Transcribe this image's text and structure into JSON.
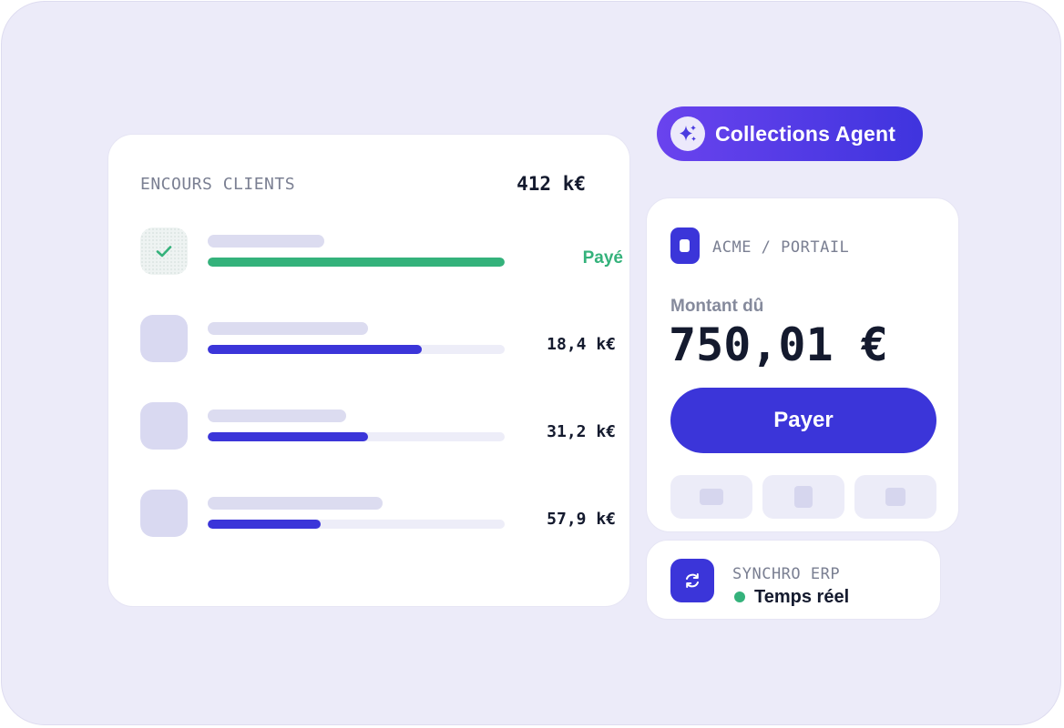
{
  "receivables": {
    "title": "ENCOURS CLIENTS",
    "total": "412 k€",
    "rows": [
      {
        "status": "Payé",
        "progress": 1.0,
        "line_fraction": 0.4,
        "state": "paid"
      },
      {
        "amount": "18,4 k€",
        "progress": 0.72,
        "line_fraction": 0.54
      },
      {
        "amount": "31,2 k€",
        "progress": 0.54,
        "line_fraction": 0.47
      },
      {
        "amount": "57,9 k€",
        "progress": 0.38,
        "line_fraction": 0.59
      }
    ]
  },
  "agent": {
    "label": "Collections Agent",
    "icon": "sparkle-icon"
  },
  "payment": {
    "merchant": "ACME / PORTAIL",
    "amount_label": "Montant dû",
    "amount": "750,01 €",
    "pay_label": "Payer",
    "methods": [
      "card-icon",
      "phone-icon",
      "bank-icon"
    ]
  },
  "sync": {
    "title": "SYNCHRO ERP",
    "status": "Temps réel",
    "status_color": "#34b27b",
    "icon": "refresh-icon"
  },
  "colors": {
    "accent": "#3b35d9",
    "success": "#34b27b",
    "background": "#ecebf9"
  }
}
